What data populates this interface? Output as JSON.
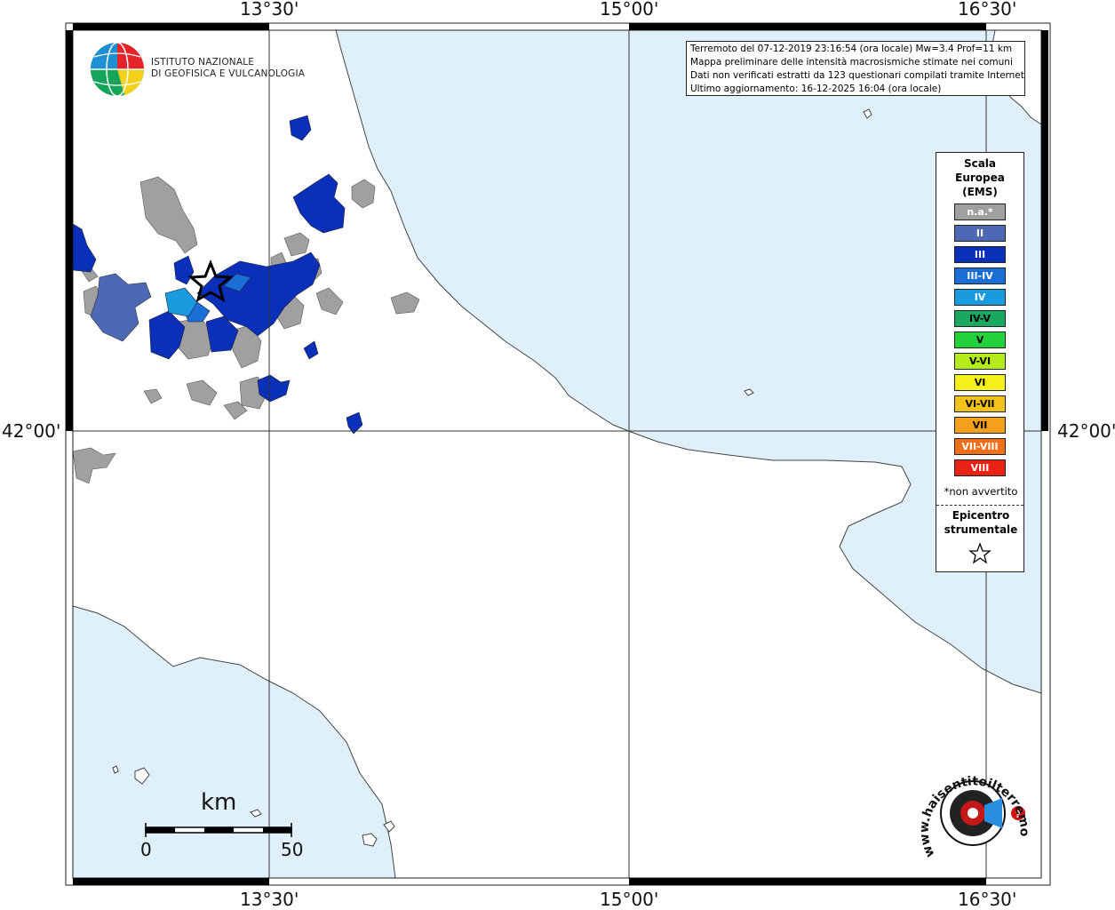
{
  "map": {
    "grid_labels": {
      "top": [
        "13°30'",
        "15°00'",
        "16°30'"
      ],
      "bottom": [
        "13°30'",
        "15°00'",
        "16°30'"
      ],
      "left": "42°00'",
      "right": "42°00'"
    },
    "colors": {
      "sea": "#dff0fb",
      "land": "#ffffff",
      "na": "#a0a0a0",
      "II": "#4f68b4",
      "III": "#0a2fb8",
      "III-IV": "#1a6fd6",
      "IV": "#1a9be0"
    }
  },
  "logo_ingv": {
    "name": "istituto-nazionale-di-geofisica-e-vulcanologia",
    "line1": "ISTITUTO NAZIONALE",
    "line2": "DI GEOFISICA E VULCANOLOGIA"
  },
  "info": {
    "line1": "Terremoto del 07-12-2019 23:16:54 (ora locale) Mw=3.4 Prof=11 km",
    "line2": "Mappa preliminare delle intensità macrosismiche stimate nei comuni",
    "line3": "Dati non verificati estratti da 123 questionari compilati tramite Internet",
    "line4": "Ultimo aggiornamento: 16-12-2025 16:04 (ora locale)"
  },
  "legend": {
    "title_line1": "Scala",
    "title_line2": "Europea",
    "title_line3": "(EMS)",
    "items": [
      {
        "label": "n.a.*",
        "color": "#a0a0a0"
      },
      {
        "label": "II",
        "color": "#4f68b4"
      },
      {
        "label": "III",
        "color": "#0a2fb8"
      },
      {
        "label": "III-IV",
        "color": "#1a6fd6"
      },
      {
        "label": "IV",
        "color": "#1a9be0"
      },
      {
        "label": "IV-V",
        "color": "#1aa860"
      },
      {
        "label": "V",
        "color": "#22d23a"
      },
      {
        "label": "V-VI",
        "color": "#b4ec1a"
      },
      {
        "label": "VI",
        "color": "#f5f01a"
      },
      {
        "label": "VI-VII",
        "color": "#f2c21a"
      },
      {
        "label": "VII",
        "color": "#f5a01a"
      },
      {
        "label": "VII-VIII",
        "color": "#f0701a"
      },
      {
        "label": "VIII",
        "color": "#ea2216"
      }
    ],
    "note": "*non avvertito",
    "epicenter_line1": "Epicentro",
    "epicenter_line2": "strumentale"
  },
  "scale_bar": {
    "unit": "km",
    "min": "0",
    "max": "50"
  },
  "logo_hsit": {
    "name": "haisentitoilterremoto.it",
    "text": "www.haisentitoilterremoto.it"
  }
}
